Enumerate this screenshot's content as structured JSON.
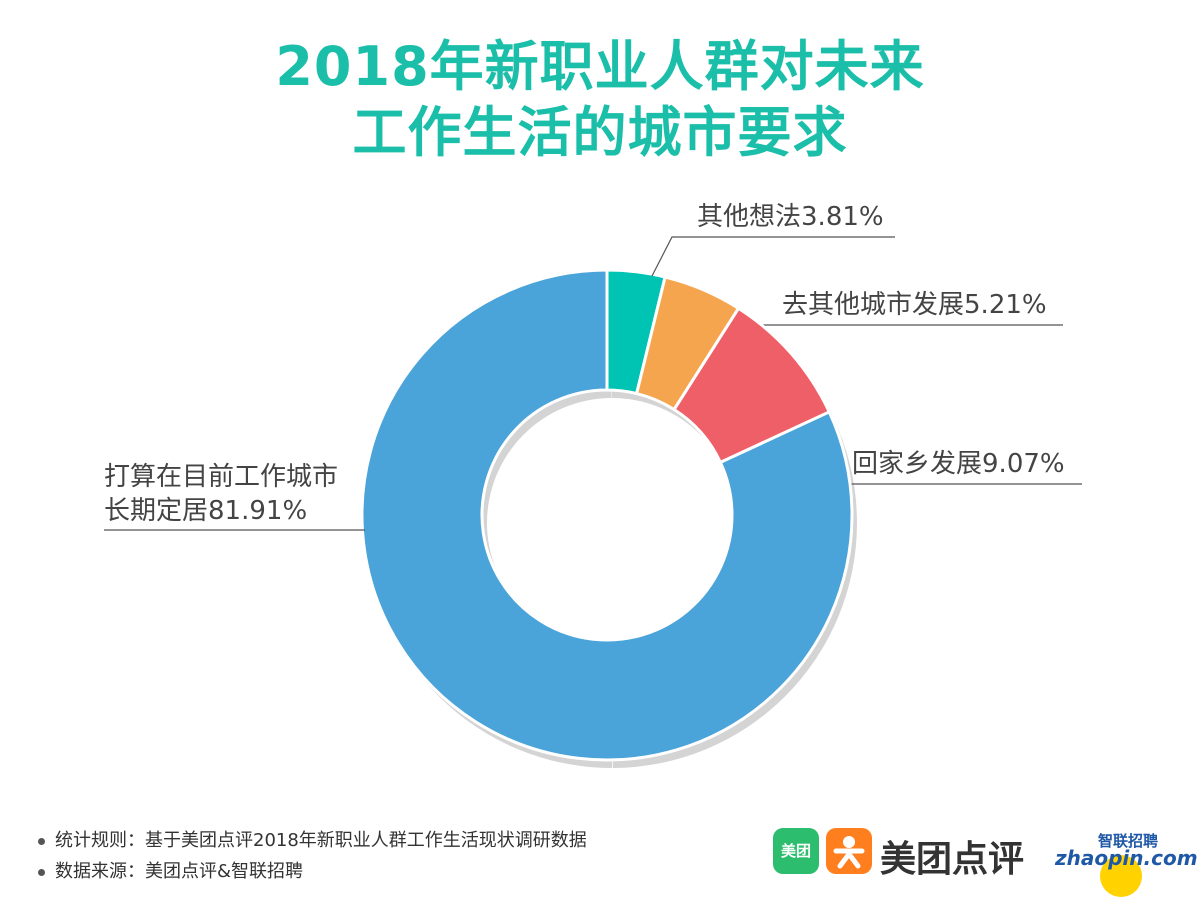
{
  "chart_data": {
    "type": "donut",
    "title": [
      "2018年新职业人群对未来",
      "工作生活的城市要求"
    ],
    "categories": [
      "其他想法",
      "去其他城市发展",
      "回家乡发展",
      "打算在目前工作城市长期定居"
    ],
    "values": [
      3.81,
      5.21,
      9.07,
      81.91
    ],
    "value_labels": [
      "3.81%",
      "5.21%",
      "9.07%",
      "81.91%"
    ],
    "colors": [
      "#00c4b3",
      "#f6a54f",
      "#ef5f68",
      "#4aa3d9"
    ]
  },
  "footer": [
    "统计规则：基于美团点评2018年新职业人群工作生活现状调研数据",
    "数据来源：美团点评&智联招聘"
  ],
  "logos": {
    "meituan_icon": "美团",
    "dianping": "美团点评",
    "zhilian": "智联招聘",
    "zhaopin": "zhaopin.com"
  }
}
